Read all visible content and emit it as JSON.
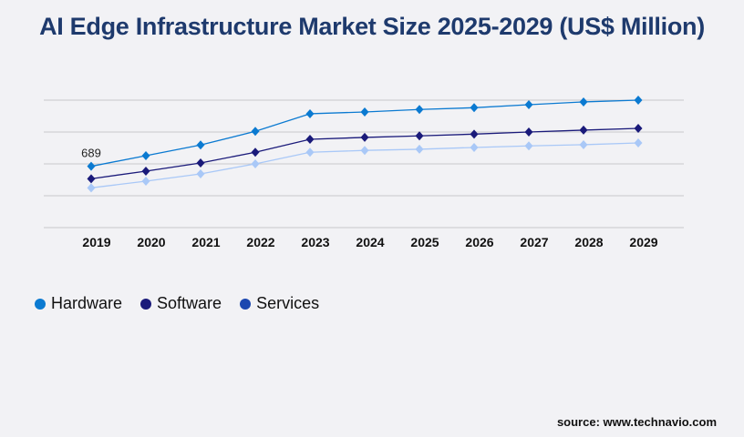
{
  "chart_data": {
    "type": "line",
    "title": "AI Edge Infrastructure Market Size 2025-2029 (US$ Million)",
    "categories": [
      "2019",
      "2020",
      "2021",
      "2022",
      "2023",
      "2024",
      "2025",
      "2026",
      "2027",
      "2028",
      "2029"
    ],
    "series": [
      {
        "name": "Hardware",
        "color": "#0b7ad1",
        "legend_color": "#0b7ad1",
        "values": [
          689,
          809,
          929,
          1082,
          1280,
          1300,
          1328,
          1348,
          1382,
          1413,
          1433
        ]
      },
      {
        "name": "Software",
        "color": "#1a1a7a",
        "legend_color": "#1a1a7a",
        "values": [
          549,
          635,
          727,
          847,
          993,
          1014,
          1031,
          1051,
          1075,
          1096,
          1116
        ]
      },
      {
        "name": "Services",
        "color": "#a9c8f7",
        "legend_color": "#1b47b0",
        "values": [
          447,
          522,
          604,
          717,
          847,
          868,
          881,
          901,
          919,
          932,
          952
        ]
      }
    ],
    "data_labels": [
      {
        "series": "Hardware",
        "category": "2019",
        "text": "689"
      }
    ],
    "ylim": [
      0,
      1433
    ],
    "grid": true,
    "y_tick_labels_shown": false,
    "legend_placement": "bottom-left"
  },
  "source": "source: www.technavio.com"
}
